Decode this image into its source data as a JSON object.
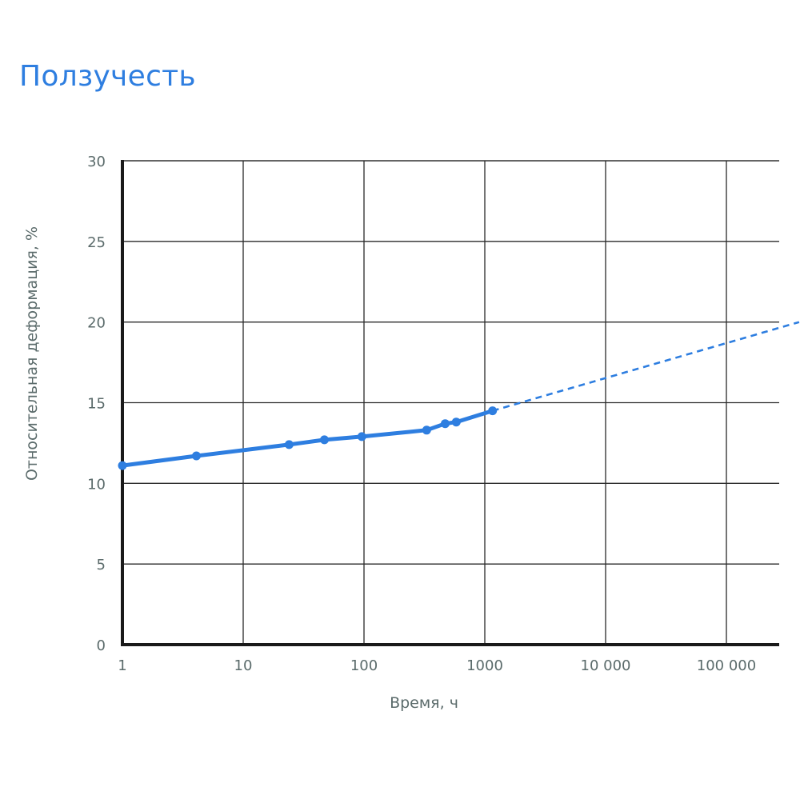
{
  "page": {
    "title": "Ползучесть"
  },
  "colors": {
    "title": "#2e7ee0",
    "series": "#2e7ee0",
    "axis": "#1a1a1a",
    "grid": "#2a2a2a",
    "tick_text": "#5b6b6b",
    "background": "#ffffff"
  },
  "chart_data": {
    "type": "line",
    "title": "Ползучесть",
    "xlabel": "Время, ч",
    "ylabel": "Относительная деформация, %",
    "x_scale": "log",
    "xlim": [
      1,
      400000
    ],
    "ylim": [
      0,
      30
    ],
    "grid": true,
    "legend": "none",
    "x_ticks": [
      {
        "value": 1,
        "label": "1"
      },
      {
        "value": 10,
        "label": "10"
      },
      {
        "value": 100,
        "label": "100"
      },
      {
        "value": 1000,
        "label": "1000"
      },
      {
        "value": 10000,
        "label": "10 000"
      },
      {
        "value": 100000,
        "label": "100 000"
      }
    ],
    "y_ticks": [
      {
        "value": 0,
        "label": "0"
      },
      {
        "value": 5,
        "label": "5"
      },
      {
        "value": 10,
        "label": "10"
      },
      {
        "value": 15,
        "label": "15"
      },
      {
        "value": 20,
        "label": "20"
      },
      {
        "value": 25,
        "label": "25"
      },
      {
        "value": 30,
        "label": "30"
      }
    ],
    "series": [
      {
        "style": "solid-markers",
        "x": [
          1,
          4.1,
          24,
          47,
          96,
          330,
          470,
          580,
          1160
        ],
        "y": [
          11.1,
          11.7,
          12.4,
          12.7,
          12.9,
          13.3,
          13.7,
          13.8,
          14.5
        ]
      },
      {
        "style": "dashed",
        "x": [
          1160,
          400000
        ],
        "y": [
          14.5,
          20.0
        ]
      }
    ]
  }
}
